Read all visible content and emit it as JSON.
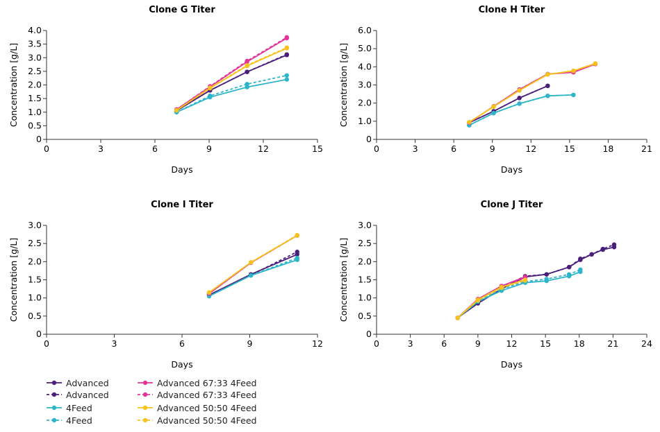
{
  "colors": {
    "Advanced": "#4a1f7c",
    "4Feed": "#2cb5c9",
    "Advanced 67:33 4Feed": "#e2359b",
    "Advanced 50:50 4Feed": "#f8c21c"
  },
  "legend": [
    {
      "name": "Advanced",
      "style": "solid"
    },
    {
      "name": "Advanced",
      "style": "dashed"
    },
    {
      "name": "4Feed",
      "style": "solid"
    },
    {
      "name": "4Feed",
      "style": "dashed"
    },
    {
      "name": "Advanced 67:33 4Feed",
      "style": "solid"
    },
    {
      "name": "Advanced 67:33 4Feed",
      "style": "dashed"
    },
    {
      "name": "Advanced 50:50 4Feed",
      "style": "solid"
    },
    {
      "name": "Advanced 50:50 4Feed",
      "style": "dashed"
    }
  ],
  "chart_data": [
    {
      "type": "line",
      "title": "Clone G Titer",
      "xlabel": "Days",
      "ylabel": "Concentration [g/L]",
      "xlim": [
        0,
        15
      ],
      "xticks": [
        0,
        3,
        6,
        9,
        12,
        15
      ],
      "ylim": [
        0,
        4
      ],
      "yticks": [
        "0",
        "0.5",
        "1.0",
        "1.5",
        "2.0",
        "2.5",
        "3.0",
        "3.5",
        "4.0"
      ],
      "series": [
        {
          "name": "Advanced",
          "style": "solid",
          "x": [
            7.2,
            9.05,
            11.1,
            13.3
          ],
          "y": [
            1.05,
            1.8,
            2.48,
            3.1
          ]
        },
        {
          "name": "Advanced",
          "style": "dashed",
          "x": [
            7.2,
            9.05,
            11.1,
            13.3
          ],
          "y": [
            1.05,
            1.8,
            2.48,
            3.12
          ]
        },
        {
          "name": "4Feed",
          "style": "solid",
          "x": [
            7.2,
            9.05,
            11.1,
            13.3
          ],
          "y": [
            1.0,
            1.55,
            1.92,
            2.2
          ]
        },
        {
          "name": "4Feed",
          "style": "dashed",
          "x": [
            7.2,
            9.05,
            11.1,
            13.3
          ],
          "y": [
            1.0,
            1.6,
            2.03,
            2.35
          ]
        },
        {
          "name": "Advanced 67:33 4Feed",
          "style": "solid",
          "x": [
            7.2,
            9.05,
            11.1,
            13.3
          ],
          "y": [
            1.1,
            1.93,
            2.85,
            3.72
          ]
        },
        {
          "name": "Advanced 67:33 4Feed",
          "style": "dashed",
          "x": [
            7.2,
            9.05,
            11.1,
            13.3
          ],
          "y": [
            1.1,
            1.95,
            2.88,
            3.75
          ]
        },
        {
          "name": "Advanced 50:50 4Feed",
          "style": "solid",
          "x": [
            7.2,
            9.05,
            11.1,
            13.3
          ],
          "y": [
            1.07,
            1.88,
            2.7,
            3.35
          ]
        },
        {
          "name": "Advanced 50:50 4Feed",
          "style": "dashed",
          "x": [
            7.2,
            9.05,
            11.1,
            13.3
          ],
          "y": [
            1.07,
            1.9,
            2.72,
            3.37
          ]
        }
      ]
    },
    {
      "type": "line",
      "title": "Clone H Titer",
      "xlabel": "Days",
      "ylabel": "Concentration [g/L]",
      "xlim": [
        0,
        21
      ],
      "xticks": [
        0,
        3,
        6,
        9,
        12,
        15,
        18,
        21
      ],
      "ylim": [
        0,
        6
      ],
      "yticks": [
        "0",
        "1.0",
        "2.0",
        "3.0",
        "4.0",
        "5.0",
        "6.0"
      ],
      "series": [
        {
          "name": "Advanced",
          "style": "solid",
          "x": [
            7.2,
            9.1,
            11.1,
            13.3
          ],
          "y": [
            0.92,
            1.55,
            2.28,
            2.95
          ]
        },
        {
          "name": "Advanced",
          "style": "dashed",
          "x": [
            7.2,
            9.1,
            11.1,
            13.3
          ],
          "y": [
            0.92,
            1.55,
            2.28,
            2.95
          ]
        },
        {
          "name": "4Feed",
          "style": "solid",
          "x": [
            7.2,
            9.1,
            11.1,
            13.3,
            15.3
          ],
          "y": [
            0.78,
            1.45,
            1.97,
            2.4,
            2.45
          ]
        },
        {
          "name": "4Feed",
          "style": "dashed",
          "x": [
            7.2,
            9.1,
            11.1,
            13.3,
            15.3
          ],
          "y": [
            0.78,
            1.45,
            1.97,
            2.4,
            2.45
          ]
        },
        {
          "name": "Advanced 67:33 4Feed",
          "style": "solid",
          "x": [
            7.2,
            9.1,
            11.1,
            13.3,
            15.3,
            17.0
          ],
          "y": [
            0.92,
            1.82,
            2.75,
            3.6,
            3.7,
            4.15
          ]
        },
        {
          "name": "Advanced 67:33 4Feed",
          "style": "dashed",
          "x": [
            7.2,
            9.1,
            11.1,
            13.3,
            15.3,
            17.0
          ],
          "y": [
            0.92,
            1.82,
            2.75,
            3.6,
            3.7,
            4.15
          ]
        },
        {
          "name": "Advanced 50:50 4Feed",
          "style": "solid",
          "x": [
            7.2,
            9.1,
            11.1,
            13.3,
            15.3,
            17.0
          ],
          "y": [
            0.95,
            1.8,
            2.7,
            3.58,
            3.78,
            4.18
          ]
        },
        {
          "name": "Advanced 50:50 4Feed",
          "style": "dashed",
          "x": [
            7.2,
            9.1,
            11.1,
            13.3,
            15.3,
            17.0
          ],
          "y": [
            0.95,
            1.8,
            2.7,
            3.58,
            3.78,
            4.18
          ]
        }
      ]
    },
    {
      "type": "line",
      "title": "Clone I Titer",
      "xlabel": "Days",
      "ylabel": "Concentration [g/L]",
      "xlim": [
        0,
        12
      ],
      "xticks": [
        0,
        3,
        6,
        9,
        12
      ],
      "ylim": [
        0,
        3
      ],
      "yticks": [
        "0",
        "0.5",
        "1.0",
        "1.5",
        "2.0",
        "2.5",
        "3.0"
      ],
      "series": [
        {
          "name": "Advanced",
          "style": "solid",
          "x": [
            7.2,
            9.05,
            11.1
          ],
          "y": [
            1.08,
            1.65,
            2.2
          ]
        },
        {
          "name": "Advanced",
          "style": "dashed",
          "x": [
            7.2,
            9.05,
            11.1
          ],
          "y": [
            1.08,
            1.63,
            2.27
          ]
        },
        {
          "name": "4Feed",
          "style": "solid",
          "x": [
            7.2,
            9.05,
            11.1
          ],
          "y": [
            1.05,
            1.62,
            2.05
          ]
        },
        {
          "name": "4Feed",
          "style": "dashed",
          "x": [
            7.2,
            9.05,
            11.1
          ],
          "y": [
            1.05,
            1.62,
            2.1
          ]
        },
        {
          "name": "Advanced 67:33 4Feed",
          "style": "solid",
          "x": [
            7.2,
            9.05,
            11.1
          ],
          "y": [
            1.12,
            1.97,
            2.72
          ]
        },
        {
          "name": "Advanced 67:33 4Feed",
          "style": "dashed",
          "x": [
            7.2,
            9.05,
            11.1
          ],
          "y": [
            1.12,
            1.97,
            2.72
          ]
        },
        {
          "name": "Advanced 50:50 4Feed",
          "style": "solid",
          "x": [
            7.2,
            9.05,
            11.1
          ],
          "y": [
            1.15,
            1.98,
            2.72
          ]
        },
        {
          "name": "Advanced 50:50 4Feed",
          "style": "dashed",
          "x": [
            7.2,
            9.05,
            11.1
          ],
          "y": [
            1.15,
            1.98,
            2.73
          ]
        }
      ]
    },
    {
      "type": "line",
      "title": "Clone J Titer",
      "xlabel": "Days",
      "ylabel": "Concentration [g/L]",
      "xlim": [
        0,
        24
      ],
      "xticks": [
        0,
        3,
        6,
        9,
        12,
        15,
        18,
        21,
        24
      ],
      "ylim": [
        0,
        3
      ],
      "yticks": [
        "0",
        "0.5",
        "1.0",
        "1.5",
        "2.0",
        "2.5",
        "3.0"
      ],
      "series": [
        {
          "name": "Advanced",
          "style": "solid",
          "x": [
            7.2,
            9,
            11.1,
            13.2,
            15.1,
            17.1,
            18.1,
            19.1,
            20.1,
            21.1
          ],
          "y": [
            0.45,
            0.85,
            1.25,
            1.58,
            1.65,
            1.85,
            2.05,
            2.2,
            2.33,
            2.4
          ]
        },
        {
          "name": "Advanced",
          "style": "dashed",
          "x": [
            7.2,
            9,
            11.1,
            13.2,
            15.1,
            17.1,
            18.1,
            19.1,
            20.1,
            21.1
          ],
          "y": [
            0.45,
            0.88,
            1.3,
            1.6,
            1.65,
            1.85,
            2.08,
            2.2,
            2.35,
            2.47
          ]
        },
        {
          "name": "4Feed",
          "style": "solid",
          "x": [
            7.2,
            9,
            11.1,
            13.2,
            15.1,
            17.1,
            18.1
          ],
          "y": [
            0.45,
            0.9,
            1.2,
            1.42,
            1.47,
            1.6,
            1.72
          ]
        },
        {
          "name": "4Feed",
          "style": "dashed",
          "x": [
            7.2,
            9,
            11.1,
            13.2,
            15.1,
            17.1,
            18.1
          ],
          "y": [
            0.45,
            0.92,
            1.25,
            1.45,
            1.52,
            1.65,
            1.78
          ]
        },
        {
          "name": "Advanced 67:33 4Feed",
          "style": "solid",
          "x": [
            7.2,
            9,
            11.1,
            13.2
          ],
          "y": [
            0.45,
            0.97,
            1.33,
            1.58
          ]
        },
        {
          "name": "Advanced 67:33 4Feed",
          "style": "dashed",
          "x": [
            7.2,
            9,
            11.1,
            13.2
          ],
          "y": [
            0.45,
            0.95,
            1.3,
            1.55
          ]
        },
        {
          "name": "Advanced 50:50 4Feed",
          "style": "solid",
          "x": [
            7.2,
            9,
            11.1,
            13.2
          ],
          "y": [
            0.45,
            0.95,
            1.3,
            1.5
          ]
        },
        {
          "name": "Advanced 50:50 4Feed",
          "style": "dashed",
          "x": [
            7.2,
            9,
            11.1,
            13.2
          ],
          "y": [
            0.45,
            0.93,
            1.28,
            1.48
          ]
        }
      ]
    }
  ]
}
